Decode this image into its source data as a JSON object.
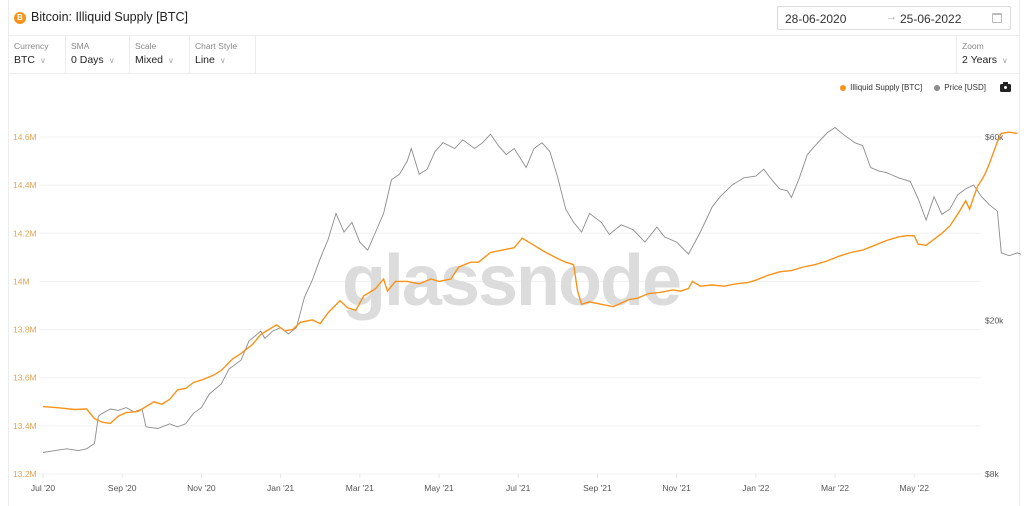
{
  "header": {
    "title": "Bitcoin: Illiquid Supply [BTC]",
    "icon": "bitcoin-icon",
    "icon_glyph": "B",
    "date_start": "28-06-2020",
    "date_arrow": "→",
    "date_end": "25-06-2022"
  },
  "controls": [
    {
      "label": "Currency",
      "value": "BTC"
    },
    {
      "label": "SMA",
      "value": "0 Days"
    },
    {
      "label": "Scale",
      "value": "Mixed"
    },
    {
      "label": "Chart Style",
      "value": "Line"
    }
  ],
  "zoom": {
    "label": "Zoom",
    "value": "2 Years"
  },
  "legend": {
    "series1": "Illiquid Supply [BTC]",
    "series2": "Price [USD]"
  },
  "watermark": "glassnode",
  "colors": {
    "supply": "#f7931a",
    "price": "#8c8c8c",
    "axis_left": "#e0a45a",
    "axis_right": "#555555",
    "grid": "#f0f0f0",
    "watermark": "#d9d9d9"
  },
  "chart_data": {
    "type": "line",
    "title": "Bitcoin: Illiquid Supply [BTC]",
    "xlabel": "",
    "ylabel_left": "Illiquid Supply [BTC]",
    "ylabel_right": "Price [USD]",
    "x_ticks": [
      "Jul '20",
      "Sep '20",
      "Nov '20",
      "Jan '21",
      "Mar '21",
      "May '21",
      "Jul '21",
      "Sep '21",
      "Nov '21",
      "Jan '22",
      "Mar '22",
      "May '22"
    ],
    "y_left_ticks": [
      "14.6M",
      "14.4M",
      "14.2M",
      "14M",
      "13.8M",
      "13.6M",
      "13.4M",
      "13.2M"
    ],
    "y_left_range": [
      13200000,
      14600000
    ],
    "y_right_ticks": [
      "$60k",
      "$20k",
      "$8k"
    ],
    "y_right_scale": "log",
    "grid": true,
    "legend_position": "top-right",
    "x_month_index_range": [
      0,
      24
    ],
    "series": [
      {
        "name": "Illiquid Supply [BTC]",
        "axis": "left",
        "points": [
          [
            0.0,
            13480000
          ],
          [
            0.4,
            13475000
          ],
          [
            0.8,
            13468000
          ],
          [
            1.1,
            13470000
          ],
          [
            1.3,
            13430000
          ],
          [
            1.5,
            13415000
          ],
          [
            1.7,
            13410000
          ],
          [
            1.9,
            13440000
          ],
          [
            2.1,
            13455000
          ],
          [
            2.4,
            13460000
          ],
          [
            2.6,
            13480000
          ],
          [
            2.8,
            13500000
          ],
          [
            3.0,
            13490000
          ],
          [
            3.2,
            13510000
          ],
          [
            3.4,
            13550000
          ],
          [
            3.6,
            13555000
          ],
          [
            3.8,
            13580000
          ],
          [
            4.0,
            13590000
          ],
          [
            4.3,
            13610000
          ],
          [
            4.5,
            13630000
          ],
          [
            4.8,
            13680000
          ],
          [
            5.0,
            13700000
          ],
          [
            5.3,
            13740000
          ],
          [
            5.5,
            13780000
          ],
          [
            5.7,
            13800000
          ],
          [
            5.9,
            13820000
          ],
          [
            6.1,
            13795000
          ],
          [
            6.3,
            13800000
          ],
          [
            6.5,
            13830000
          ],
          [
            6.8,
            13840000
          ],
          [
            7.0,
            13825000
          ],
          [
            7.2,
            13870000
          ],
          [
            7.5,
            13920000
          ],
          [
            7.7,
            13890000
          ],
          [
            7.9,
            13880000
          ],
          [
            8.1,
            13940000
          ],
          [
            8.4,
            13970000
          ],
          [
            8.6,
            14010000
          ],
          [
            8.7,
            13960000
          ],
          [
            8.9,
            14000000
          ],
          [
            9.2,
            14000000
          ],
          [
            9.5,
            13990000
          ],
          [
            9.8,
            14010000
          ],
          [
            10.0,
            14000000
          ],
          [
            10.3,
            14010000
          ],
          [
            10.5,
            14060000
          ],
          [
            10.8,
            14080000
          ],
          [
            11.0,
            14080000
          ],
          [
            11.3,
            14120000
          ],
          [
            11.6,
            14130000
          ],
          [
            11.9,
            14140000
          ],
          [
            12.1,
            14180000
          ],
          [
            12.4,
            14150000
          ],
          [
            12.7,
            14120000
          ],
          [
            13.0,
            14095000
          ],
          [
            13.2,
            14080000
          ],
          [
            13.4,
            14070000
          ],
          [
            13.5,
            13960000
          ],
          [
            13.6,
            13905000
          ],
          [
            13.8,
            13915000
          ],
          [
            14.1,
            13905000
          ],
          [
            14.4,
            13895000
          ],
          [
            14.6,
            13910000
          ],
          [
            14.8,
            13925000
          ],
          [
            15.0,
            13930000
          ],
          [
            15.3,
            13950000
          ],
          [
            15.6,
            13955000
          ],
          [
            15.9,
            13965000
          ],
          [
            16.1,
            13960000
          ],
          [
            16.3,
            13970000
          ],
          [
            16.4,
            14000000
          ],
          [
            16.6,
            13980000
          ],
          [
            16.9,
            13985000
          ],
          [
            17.2,
            13980000
          ],
          [
            17.5,
            13990000
          ],
          [
            17.8,
            13995000
          ],
          [
            18.0,
            14005000
          ],
          [
            18.3,
            14025000
          ],
          [
            18.6,
            14040000
          ],
          [
            18.9,
            14045000
          ],
          [
            19.2,
            14060000
          ],
          [
            19.5,
            14070000
          ],
          [
            19.8,
            14085000
          ],
          [
            20.1,
            14105000
          ],
          [
            20.4,
            14120000
          ],
          [
            20.7,
            14130000
          ],
          [
            21.0,
            14150000
          ],
          [
            21.3,
            14170000
          ],
          [
            21.6,
            14185000
          ],
          [
            21.8,
            14190000
          ],
          [
            22.0,
            14190000
          ],
          [
            22.1,
            14155000
          ],
          [
            22.3,
            14150000
          ],
          [
            22.5,
            14175000
          ],
          [
            22.7,
            14200000
          ],
          [
            22.9,
            14230000
          ],
          [
            23.1,
            14280000
          ],
          [
            23.3,
            14335000
          ],
          [
            23.4,
            14300000
          ],
          [
            23.5,
            14350000
          ],
          [
            23.6,
            14395000
          ],
          [
            23.7,
            14420000
          ],
          [
            23.8,
            14450000
          ],
          [
            23.9,
            14490000
          ],
          [
            24.0,
            14535000
          ],
          [
            24.1,
            14580000
          ],
          [
            24.2,
            14615000
          ],
          [
            24.4,
            14620000
          ],
          [
            24.6,
            14615000
          ]
        ]
      },
      {
        "name": "Price [USD]",
        "axis": "right",
        "points": [
          [
            0.0,
            9100
          ],
          [
            0.3,
            9200
          ],
          [
            0.6,
            9300
          ],
          [
            0.9,
            9200
          ],
          [
            1.1,
            9300
          ],
          [
            1.3,
            9600
          ],
          [
            1.4,
            11300
          ],
          [
            1.5,
            11500
          ],
          [
            1.7,
            11800
          ],
          [
            1.9,
            11700
          ],
          [
            2.1,
            11900
          ],
          [
            2.3,
            11600
          ],
          [
            2.5,
            11800
          ],
          [
            2.6,
            10600
          ],
          [
            2.9,
            10500
          ],
          [
            3.2,
            10800
          ],
          [
            3.4,
            10600
          ],
          [
            3.6,
            10800
          ],
          [
            3.8,
            11500
          ],
          [
            4.0,
            11900
          ],
          [
            4.2,
            12900
          ],
          [
            4.5,
            13700
          ],
          [
            4.7,
            15000
          ],
          [
            5.0,
            15800
          ],
          [
            5.2,
            17700
          ],
          [
            5.5,
            18800
          ],
          [
            5.6,
            18000
          ],
          [
            5.8,
            18800
          ],
          [
            6.0,
            19200
          ],
          [
            6.2,
            18500
          ],
          [
            6.4,
            19200
          ],
          [
            6.6,
            23000
          ],
          [
            6.8,
            25500
          ],
          [
            7.0,
            29000
          ],
          [
            7.2,
            32500
          ],
          [
            7.4,
            38000
          ],
          [
            7.6,
            34000
          ],
          [
            7.8,
            36000
          ],
          [
            8.0,
            32000
          ],
          [
            8.2,
            30500
          ],
          [
            8.4,
            34000
          ],
          [
            8.6,
            38000
          ],
          [
            8.8,
            46500
          ],
          [
            9.0,
            48000
          ],
          [
            9.2,
            52000
          ],
          [
            9.3,
            56000
          ],
          [
            9.5,
            48000
          ],
          [
            9.7,
            49500
          ],
          [
            9.9,
            55000
          ],
          [
            10.1,
            58000
          ],
          [
            10.4,
            56000
          ],
          [
            10.6,
            59000
          ],
          [
            10.9,
            56000
          ],
          [
            11.1,
            58000
          ],
          [
            11.3,
            61000
          ],
          [
            11.5,
            57000
          ],
          [
            11.7,
            54000
          ],
          [
            11.9,
            56000
          ],
          [
            12.2,
            50000
          ],
          [
            12.4,
            56000
          ],
          [
            12.6,
            58000
          ],
          [
            12.8,
            55000
          ],
          [
            13.0,
            47000
          ],
          [
            13.2,
            39000
          ],
          [
            13.4,
            36000
          ],
          [
            13.6,
            34000
          ],
          [
            13.8,
            38000
          ],
          [
            14.1,
            36000
          ],
          [
            14.3,
            33500
          ],
          [
            14.6,
            35500
          ],
          [
            14.9,
            34500
          ],
          [
            15.2,
            32000
          ],
          [
            15.5,
            35000
          ],
          [
            15.7,
            33000
          ],
          [
            16.0,
            32000
          ],
          [
            16.3,
            29800
          ],
          [
            16.6,
            34000
          ],
          [
            16.9,
            39500
          ],
          [
            17.1,
            42000
          ],
          [
            17.4,
            45000
          ],
          [
            17.7,
            47000
          ],
          [
            18.0,
            47500
          ],
          [
            18.2,
            49500
          ],
          [
            18.4,
            46500
          ],
          [
            18.6,
            44000
          ],
          [
            18.8,
            43500
          ],
          [
            18.9,
            41800
          ],
          [
            19.1,
            47000
          ],
          [
            19.3,
            54000
          ],
          [
            19.5,
            57000
          ],
          [
            19.8,
            61500
          ],
          [
            20.0,
            63500
          ],
          [
            20.2,
            61000
          ],
          [
            20.5,
            58000
          ],
          [
            20.7,
            57000
          ],
          [
            20.9,
            50000
          ],
          [
            21.1,
            49000
          ],
          [
            21.3,
            48500
          ],
          [
            21.6,
            47000
          ],
          [
            21.9,
            46000
          ],
          [
            22.1,
            41500
          ],
          [
            22.3,
            36500
          ],
          [
            22.5,
            42000
          ],
          [
            22.7,
            37800
          ],
          [
            22.9,
            39000
          ],
          [
            23.1,
            42500
          ],
          [
            23.3,
            44000
          ],
          [
            23.5,
            45000
          ],
          [
            23.7,
            42000
          ],
          [
            23.9,
            40000
          ],
          [
            24.1,
            38500
          ],
          [
            24.2,
            30000
          ],
          [
            24.4,
            29500
          ],
          [
            24.6,
            30000
          ],
          [
            24.7,
            29800
          ],
          [
            24.8,
            25000
          ],
          [
            24.9,
            20500
          ],
          [
            25.0,
            19000
          ],
          [
            25.1,
            20500
          ],
          [
            25.3,
            21000
          ]
        ]
      }
    ]
  }
}
